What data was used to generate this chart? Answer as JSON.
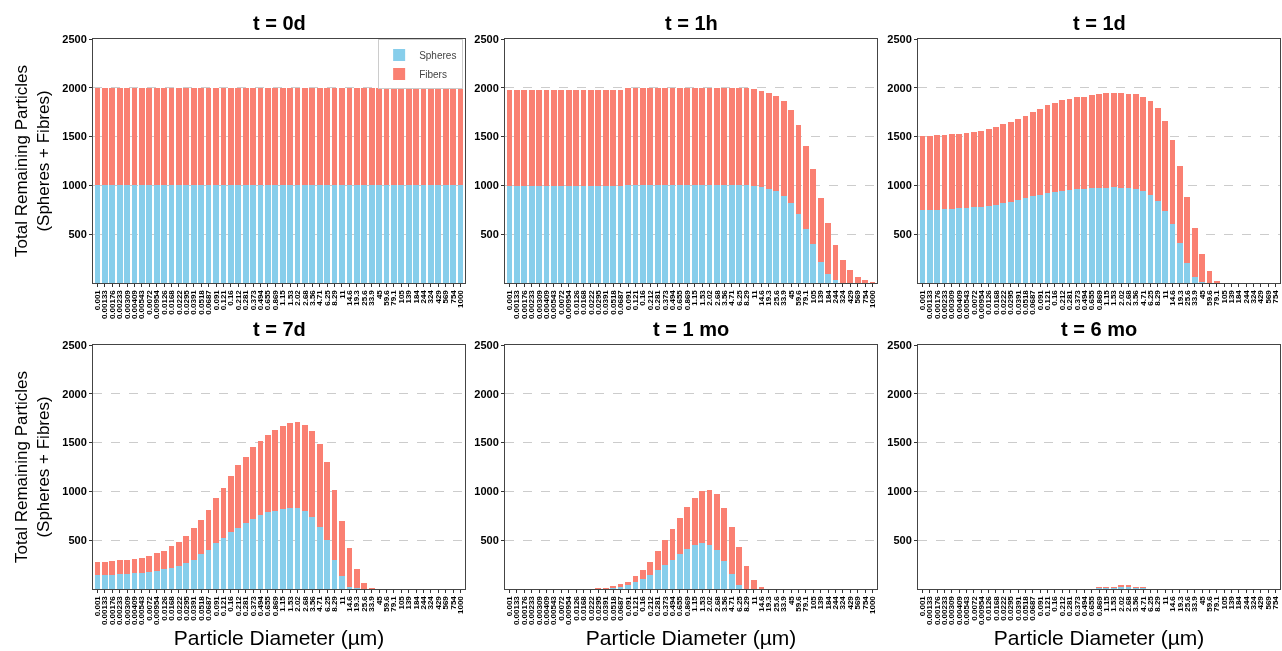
{
  "chart_data": [
    {
      "type": "bar",
      "title": "t = 0d",
      "ylabel": "Total Remaining Particles\n(Spheres + Fibres)",
      "stacked": true,
      "grid": "y",
      "legend": "top right",
      "ylim": [
        0,
        2500
      ],
      "yticks": [
        500,
        1000,
        1500,
        2000,
        2500
      ],
      "categories": [
        "0.001",
        "0.00133",
        "0.00176",
        "0.00233",
        "0.00309",
        "0.00409",
        "0.00543",
        "0.0072",
        "0.00954",
        "0.0126",
        "0.0168",
        "0.0222",
        "0.0295",
        "0.0391",
        "0.0518",
        "0.0687",
        "0.091",
        "0.121",
        "0.16",
        "0.212",
        "0.281",
        "0.373",
        "0.494",
        "0.655",
        "0.869",
        "1.15",
        "1.53",
        "2.02",
        "2.68",
        "3.56",
        "4.71",
        "6.25",
        "8.29",
        "11",
        "14.6",
        "19.3",
        "25.6",
        "33.9",
        "45",
        "59.6",
        "79.1",
        "105",
        "139",
        "184",
        "244",
        "324",
        "429",
        "569",
        "754",
        "1000"
      ],
      "series": [
        {
          "name": "Spheres",
          "color": "#87ceeb",
          "values": [
            1000,
            1000,
            1000,
            1000,
            1000,
            1000,
            1000,
            1000,
            1000,
            1000,
            1000,
            1000,
            1000,
            1000,
            1000,
            1000,
            1000,
            1000,
            1000,
            1000,
            1000,
            1000,
            1000,
            1000,
            1000,
            1000,
            1000,
            1000,
            1000,
            1000,
            1000,
            1000,
            1000,
            1000,
            1000,
            1000,
            1000,
            1000,
            1000,
            1000,
            1000,
            1000,
            1000,
            1000,
            1000,
            1000,
            1000,
            1000,
            1000,
            1000
          ]
        },
        {
          "name": "Fibers",
          "color": "#fa8072",
          "values": [
            1000,
            1000,
            1000,
            1000,
            1000,
            1000,
            1000,
            1000,
            1000,
            1000,
            1000,
            1000,
            1000,
            1000,
            1000,
            1000,
            1000,
            1000,
            1000,
            1000,
            1000,
            1000,
            1000,
            1000,
            1000,
            1000,
            1000,
            1000,
            1000,
            1000,
            1000,
            1000,
            1000,
            1000,
            1000,
            1000,
            1000,
            1000,
            1000,
            1000,
            1000,
            1000,
            1000,
            1000,
            1000,
            1000,
            1000,
            1000,
            1000,
            1000
          ]
        }
      ]
    },
    {
      "type": "bar",
      "title": "t = 1h",
      "stacked": true,
      "grid": "y",
      "ylim": [
        0,
        2500
      ],
      "yticks": [
        500,
        1000,
        1500,
        2000,
        2500
      ],
      "categories": [
        "0.001",
        "0.00133",
        "0.00176",
        "0.00233",
        "0.00309",
        "0.00409",
        "0.00543",
        "0.0072",
        "0.00954",
        "0.0126",
        "0.0168",
        "0.0222",
        "0.0295",
        "0.0391",
        "0.0518",
        "0.0687",
        "0.091",
        "0.121",
        "0.16",
        "0.212",
        "0.281",
        "0.373",
        "0.494",
        "0.655",
        "0.869",
        "1.15",
        "1.53",
        "2.02",
        "2.68",
        "3.56",
        "4.71",
        "6.25",
        "8.29",
        "11",
        "14.6",
        "19.3",
        "25.6",
        "33.9",
        "45",
        "59.6",
        "79.1",
        "105",
        "139",
        "184",
        "244",
        "324",
        "429",
        "569",
        "754",
        "1000"
      ],
      "series": [
        {
          "color": "#87ceeb",
          "values": [
            990,
            990,
            990,
            990,
            990,
            990,
            990,
            990,
            990,
            990,
            990,
            990,
            990,
            990,
            990,
            990,
            1000,
            1000,
            1000,
            1000,
            1000,
            1000,
            1000,
            1000,
            1000,
            1000,
            1000,
            1000,
            1000,
            1000,
            1000,
            1000,
            1000,
            990,
            980,
            960,
            940,
            890,
            820,
            710,
            550,
            400,
            220,
            90,
            30,
            0,
            0,
            0,
            0,
            0
          ]
        },
        {
          "color": "#fa8072",
          "values": [
            990,
            990,
            990,
            990,
            990,
            990,
            990,
            990,
            990,
            990,
            990,
            990,
            990,
            990,
            990,
            990,
            1000,
            1000,
            1000,
            1000,
            1000,
            1000,
            1000,
            1000,
            1000,
            1000,
            1000,
            1000,
            1000,
            1000,
            1000,
            1000,
            1000,
            1000,
            990,
            990,
            980,
            970,
            950,
            910,
            850,
            770,
            650,
            520,
            360,
            240,
            130,
            60,
            30,
            10
          ]
        }
      ]
    },
    {
      "type": "bar",
      "title": "t = 1d",
      "stacked": true,
      "grid": "y",
      "ylim": [
        0,
        2500
      ],
      "yticks": [
        500,
        1000,
        1500,
        2000,
        2500
      ],
      "categories": [
        "0.001",
        "0.00133",
        "0.00176",
        "0.00233",
        "0.00309",
        "0.00409",
        "0.00543",
        "0.0072",
        "0.00954",
        "0.0126",
        "0.0168",
        "0.0222",
        "0.0295",
        "0.0391",
        "0.0518",
        "0.0687",
        "0.091",
        "0.121",
        "0.16",
        "0.212",
        "0.281",
        "0.373",
        "0.494",
        "0.655",
        "0.869",
        "1.15",
        "1.53",
        "2.02",
        "2.68",
        "3.56",
        "4.71",
        "6.25",
        "8.29",
        "11",
        "14.6",
        "19.3",
        "25.6",
        "33.9",
        "45",
        "59.6",
        "79.1",
        "105",
        "139",
        "184",
        "244",
        "324",
        "429",
        "569",
        "754"
      ],
      "series": [
        {
          "color": "#87ceeb",
          "values": [
            750,
            750,
            750,
            760,
            760,
            770,
            770,
            780,
            780,
            790,
            800,
            820,
            830,
            850,
            870,
            890,
            900,
            920,
            930,
            940,
            950,
            960,
            960,
            970,
            970,
            970,
            980,
            970,
            970,
            960,
            940,
            900,
            840,
            740,
            600,
            410,
            210,
            60,
            10,
            0,
            0,
            0,
            0,
            0,
            0,
            0,
            0,
            0,
            0
          ]
        },
        {
          "color": "#fa8072",
          "values": [
            760,
            760,
            770,
            760,
            770,
            760,
            770,
            770,
            780,
            790,
            800,
            810,
            820,
            830,
            840,
            860,
            880,
            900,
            910,
            930,
            940,
            950,
            950,
            960,
            970,
            980,
            970,
            980,
            970,
            980,
            970,
            960,
            950,
            920,
            870,
            790,
            670,
            500,
            290,
            120,
            20,
            0,
            0,
            0,
            0,
            0,
            0,
            0,
            0
          ]
        }
      ]
    },
    {
      "type": "bar",
      "title": "t = 7d",
      "ylabel": "Total Remaining Particles\n(Spheres + Fibres)",
      "xlabel": "Particle Diameter (µm)",
      "stacked": true,
      "grid": "y",
      "ylim": [
        0,
        2500
      ],
      "yticks": [
        500,
        1000,
        1500,
        2000,
        2500
      ],
      "categories": [
        "0.001",
        "0.00133",
        "0.00176",
        "0.00233",
        "0.00309",
        "0.00409",
        "0.00543",
        "0.0072",
        "0.00954",
        "0.0126",
        "0.0168",
        "0.0222",
        "0.0295",
        "0.0391",
        "0.0518",
        "0.0687",
        "0.091",
        "0.121",
        "0.16",
        "0.212",
        "0.281",
        "0.373",
        "0.494",
        "0.655",
        "0.869",
        "1.15",
        "1.53",
        "2.02",
        "2.68",
        "3.56",
        "4.71",
        "6.25",
        "8.29",
        "11",
        "14.6",
        "19.3",
        "25.6",
        "33.9",
        "45",
        "59.6",
        "79.1",
        "105",
        "139",
        "184",
        "244",
        "324",
        "429",
        "569",
        "754",
        "1000"
      ],
      "series": [
        {
          "color": "#87ceeb",
          "values": [
            140,
            140,
            140,
            150,
            150,
            160,
            160,
            170,
            180,
            200,
            220,
            240,
            270,
            300,
            360,
            400,
            470,
            520,
            580,
            630,
            680,
            720,
            760,
            790,
            800,
            820,
            830,
            830,
            800,
            740,
            640,
            500,
            300,
            130,
            20,
            10,
            0,
            0,
            0,
            0,
            0,
            0,
            0,
            0,
            0,
            0,
            0,
            0,
            0,
            0
          ]
        },
        {
          "color": "#fa8072",
          "values": [
            140,
            140,
            150,
            150,
            150,
            150,
            160,
            170,
            190,
            190,
            220,
            240,
            270,
            320,
            350,
            410,
            460,
            520,
            580,
            640,
            670,
            730,
            760,
            790,
            830,
            850,
            870,
            880,
            880,
            880,
            850,
            800,
            710,
            570,
            400,
            190,
            60,
            10,
            0,
            0,
            0,
            0,
            0,
            0,
            0,
            0,
            0,
            0,
            0,
            0
          ]
        }
      ]
    },
    {
      "type": "bar",
      "title": "t = 1 mo",
      "xlabel": "Particle Diameter (µm)",
      "stacked": true,
      "grid": "y",
      "ylim": [
        0,
        2500
      ],
      "yticks": [
        500,
        1000,
        1500,
        2000,
        2500
      ],
      "categories": [
        "0.001",
        "0.00133",
        "0.00176",
        "0.00233",
        "0.00309",
        "0.00409",
        "0.00543",
        "0.0072",
        "0.00954",
        "0.0126",
        "0.0168",
        "0.0222",
        "0.0295",
        "0.0391",
        "0.0518",
        "0.0687",
        "0.091",
        "0.121",
        "0.16",
        "0.212",
        "0.281",
        "0.373",
        "0.494",
        "0.655",
        "0.869",
        "1.15",
        "1.53",
        "2.02",
        "2.68",
        "3.56",
        "4.71",
        "6.25",
        "8.29",
        "11",
        "14.6",
        "19.3",
        "25.6",
        "33.9",
        "45",
        "59.6",
        "79.1",
        "105",
        "139",
        "184",
        "244",
        "324",
        "429",
        "569",
        "754",
        "1000"
      ],
      "series": [
        {
          "color": "#87ceeb",
          "values": [
            0,
            0,
            0,
            0,
            0,
            0,
            0,
            0,
            0,
            0,
            0,
            0,
            0,
            0,
            10,
            20,
            40,
            70,
            100,
            140,
            190,
            250,
            300,
            360,
            410,
            450,
            470,
            450,
            400,
            290,
            150,
            40,
            0,
            0,
            0,
            0,
            0,
            0,
            0,
            0,
            0,
            0,
            0,
            0,
            0,
            0,
            0,
            0,
            0,
            0
          ]
        },
        {
          "color": "#fa8072",
          "values": [
            0,
            0,
            0,
            0,
            0,
            0,
            0,
            0,
            0,
            0,
            0,
            0,
            10,
            10,
            20,
            30,
            30,
            60,
            90,
            140,
            200,
            250,
            310,
            370,
            430,
            480,
            530,
            560,
            570,
            540,
            490,
            390,
            240,
            90,
            20,
            0,
            0,
            0,
            0,
            0,
            0,
            0,
            0,
            0,
            0,
            0,
            0,
            0,
            0,
            0
          ]
        }
      ]
    },
    {
      "type": "bar",
      "title": "t = 6 mo",
      "xlabel": "Particle Diameter (µm)",
      "stacked": true,
      "grid": "y",
      "ylim": [
        0,
        2500
      ],
      "yticks": [
        500,
        1000,
        1500,
        2000,
        2500
      ],
      "categories": [
        "0.001",
        "0.00133",
        "0.00176",
        "0.00233",
        "0.00309",
        "0.00409",
        "0.00543",
        "0.0072",
        "0.00954",
        "0.0126",
        "0.0168",
        "0.0222",
        "0.0295",
        "0.0391",
        "0.0518",
        "0.0687",
        "0.091",
        "0.121",
        "0.16",
        "0.212",
        "0.281",
        "0.373",
        "0.494",
        "0.655",
        "0.869",
        "1.15",
        "1.53",
        "2.02",
        "2.68",
        "3.56",
        "4.71",
        "6.25",
        "8.29",
        "11",
        "14.6",
        "19.3",
        "25.6",
        "33.9",
        "45",
        "59.6",
        "79.1",
        "105",
        "139",
        "184",
        "244",
        "324",
        "429",
        "569",
        "754"
      ],
      "series": [
        {
          "color": "#87ceeb",
          "values": [
            0,
            0,
            0,
            0,
            0,
            0,
            0,
            0,
            0,
            0,
            0,
            0,
            0,
            0,
            0,
            0,
            0,
            0,
            0,
            0,
            0,
            0,
            0,
            0,
            10,
            10,
            10,
            20,
            20,
            10,
            10,
            0,
            0,
            0,
            0,
            0,
            0,
            0,
            0,
            0,
            0,
            0,
            0,
            0,
            0,
            0,
            0,
            0,
            0
          ]
        },
        {
          "color": "#fa8072",
          "values": [
            0,
            0,
            0,
            0,
            0,
            0,
            0,
            0,
            0,
            0,
            0,
            0,
            0,
            0,
            0,
            0,
            0,
            0,
            0,
            0,
            0,
            0,
            0,
            0,
            10,
            10,
            10,
            20,
            20,
            10,
            10,
            0,
            0,
            0,
            0,
            0,
            0,
            0,
            0,
            0,
            0,
            0,
            0,
            0,
            0,
            0,
            0,
            0,
            0
          ]
        }
      ]
    }
  ]
}
